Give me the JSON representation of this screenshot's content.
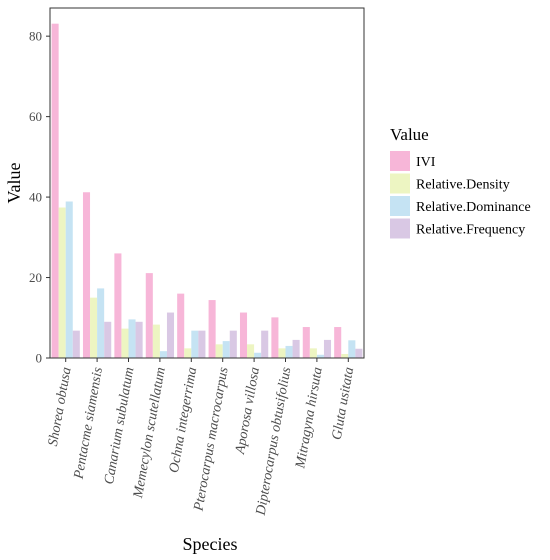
{
  "chart_data": {
    "type": "bar",
    "xlabel": "Species",
    "ylabel": "Value",
    "ylim": [
      0,
      87
    ],
    "yticks": [
      0,
      20,
      40,
      60,
      80
    ],
    "grid": false,
    "legend": {
      "title": "Value",
      "placement": "right"
    },
    "categories": [
      "Shorea obtusa",
      "Pentacme siamensis",
      "Canarium subulatum",
      "Memecylon scutellatum",
      "Ochna integerrima",
      "Pterocarpus macrocarpus",
      "Aporosa villosa",
      "Dipterocarpus obtusifolius",
      "Mitragyna hirsuta",
      "Gluta usitata"
    ],
    "series": [
      {
        "name": "IVI",
        "color": "#f7b6d8",
        "values": [
          83.1,
          41.2,
          26.0,
          21.1,
          16.0,
          14.4,
          11.3,
          10.1,
          7.7,
          7.7
        ]
      },
      {
        "name": "Relative.Density",
        "color": "#edf5c2",
        "values": [
          37.4,
          15.0,
          7.3,
          8.3,
          2.4,
          3.4,
          3.4,
          2.4,
          2.4,
          1.0
        ]
      },
      {
        "name": "Relative.Dominance",
        "color": "#c5e3f3",
        "values": [
          38.9,
          17.3,
          9.6,
          1.7,
          6.8,
          4.2,
          1.3,
          3.0,
          0.8,
          4.4
        ]
      },
      {
        "name": "Relative.Frequency",
        "color": "#d9c8e4",
        "values": [
          6.8,
          9.0,
          9.0,
          11.3,
          6.8,
          6.8,
          6.8,
          4.5,
          4.5,
          2.3
        ]
      }
    ]
  }
}
